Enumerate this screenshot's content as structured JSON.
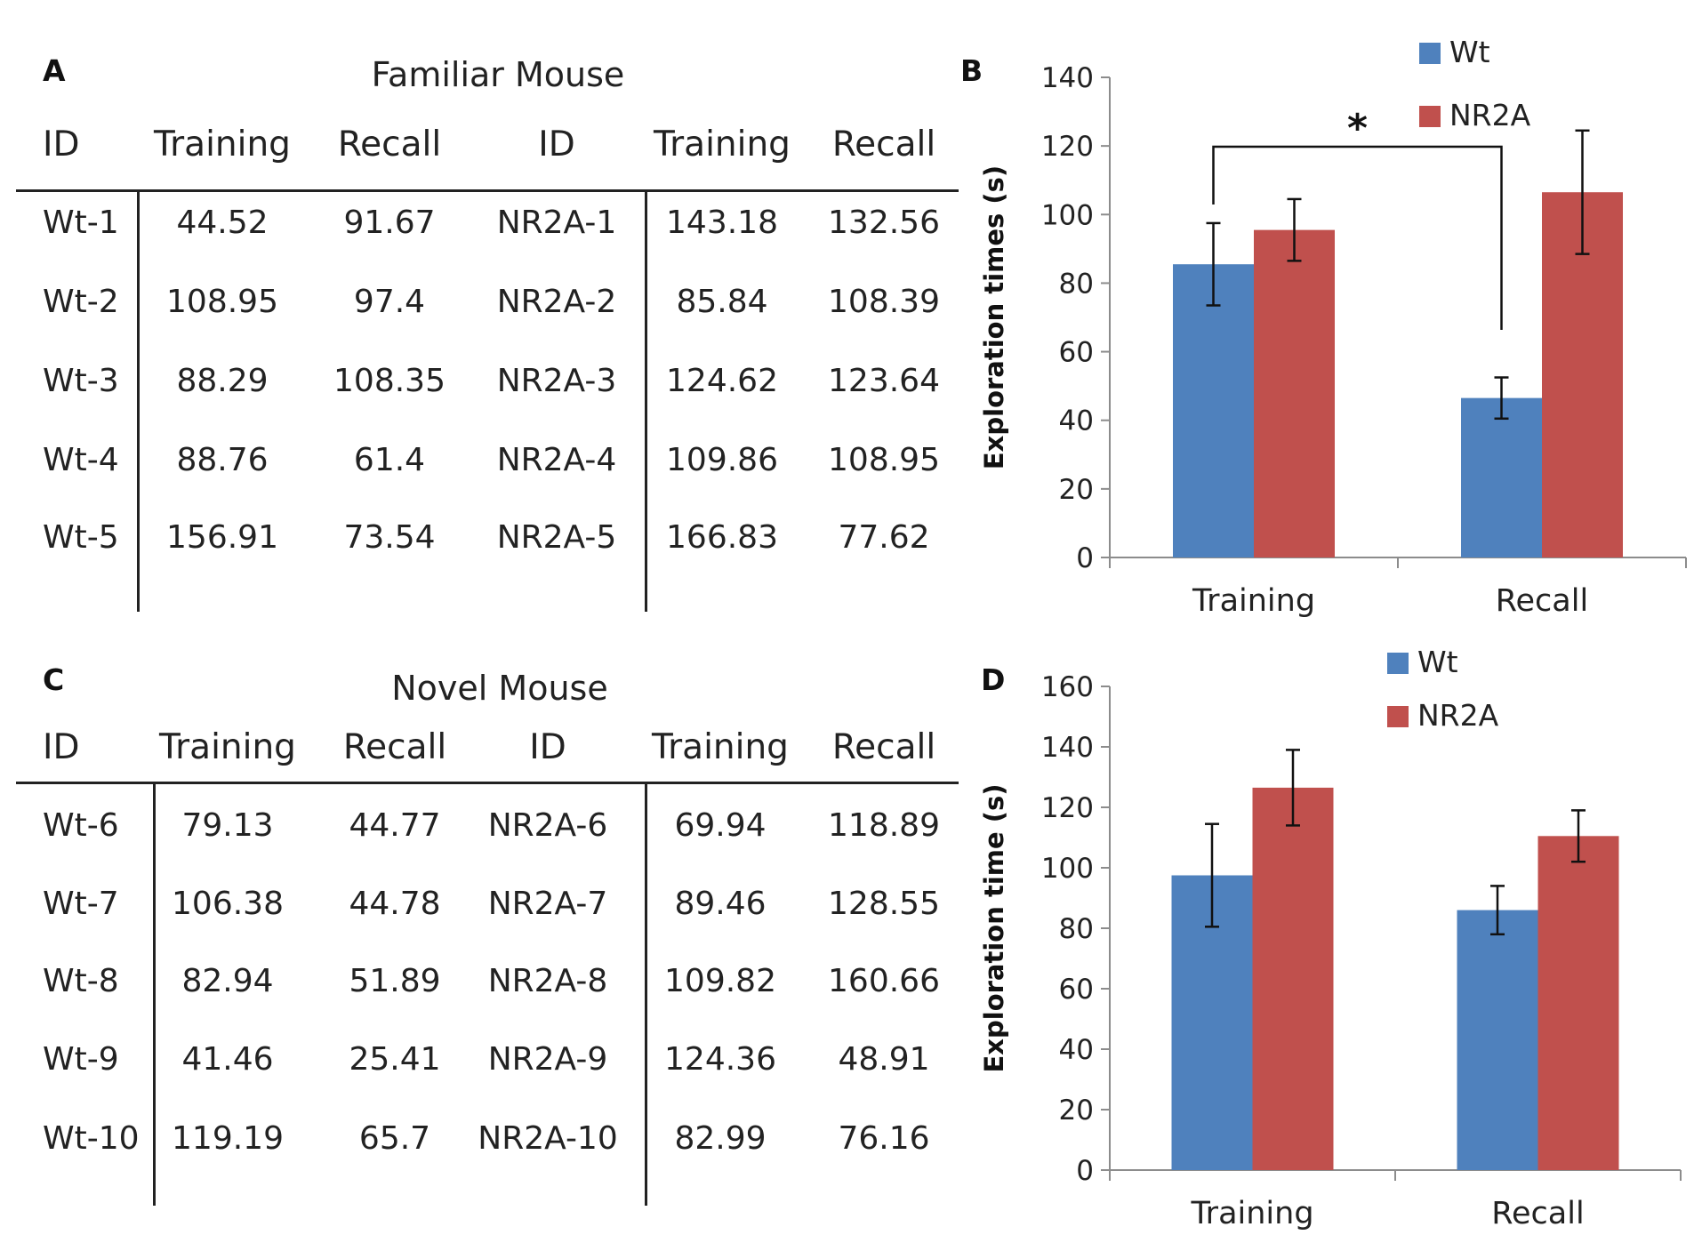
{
  "panels": {
    "a": "A",
    "b": "B",
    "c": "C",
    "d": "D"
  },
  "tables": [
    {
      "title": "Familiar Mouse",
      "headers": [
        "ID",
        "Training",
        "Recall",
        "ID",
        "Training",
        "Recall"
      ],
      "rows": [
        [
          "Wt-1",
          "44.52",
          "91.67",
          "NR2A-1",
          "143.18",
          "132.56"
        ],
        [
          "Wt-2",
          "108.95",
          "97.4",
          "NR2A-2",
          "85.84",
          "108.39"
        ],
        [
          "Wt-3",
          "88.29",
          "108.35",
          "NR2A-3",
          "124.62",
          "123.64"
        ],
        [
          "Wt-4",
          "88.76",
          "61.4",
          "NR2A-4",
          "109.86",
          "108.95"
        ],
        [
          "Wt-5",
          "156.91",
          "73.54",
          "NR2A-5",
          "166.83",
          "77.62"
        ]
      ]
    },
    {
      "title": "Novel Mouse",
      "headers": [
        "ID",
        "Training",
        "Recall",
        "ID",
        "Training",
        "Recall"
      ],
      "rows": [
        [
          "Wt-6",
          "79.13",
          "44.77",
          "NR2A-6",
          "69.94",
          "118.89"
        ],
        [
          "Wt-7",
          "106.38",
          "44.78",
          "NR2A-7",
          "89.46",
          "128.55"
        ],
        [
          "Wt-8",
          "82.94",
          "51.89",
          "NR2A-8",
          "109.82",
          "160.66"
        ],
        [
          "Wt-9",
          "41.46",
          "25.41",
          "NR2A-9",
          "124.36",
          "48.91"
        ],
        [
          "Wt-10",
          "119.19",
          "65.7",
          "NR2A-10",
          "82.99",
          "76.16"
        ]
      ]
    }
  ],
  "chart_data": [
    {
      "type": "bar",
      "panel": "B",
      "categories": [
        "Training",
        "Recall"
      ],
      "series": [
        {
          "name": "Wt",
          "color": "#4f81bd",
          "values": [
            85.5,
            46.5
          ],
          "errors": [
            12,
            6
          ]
        },
        {
          "name": "NR2A",
          "color": "#c0504d",
          "values": [
            95.5,
            106.5
          ],
          "errors": [
            9,
            18
          ]
        }
      ],
      "ylabel": "Exploration times (s)",
      "ylim": [
        0,
        140
      ],
      "yticks": [
        0,
        20,
        40,
        60,
        80,
        100,
        120,
        140
      ],
      "annotation": "*",
      "legend": "top-right"
    },
    {
      "type": "bar",
      "panel": "D",
      "categories": [
        "Training",
        "Recall"
      ],
      "series": [
        {
          "name": "Wt",
          "color": "#4f81bd",
          "values": [
            97.5,
            86
          ],
          "errors": [
            17,
            8
          ]
        },
        {
          "name": "NR2A",
          "color": "#c0504d",
          "values": [
            126.5,
            110.5
          ],
          "errors": [
            12.5,
            8.5
          ]
        }
      ],
      "ylabel": "Exploration time (s)",
      "ylim": [
        0,
        160
      ],
      "yticks": [
        0,
        20,
        40,
        60,
        80,
        100,
        120,
        140,
        160
      ],
      "legend": "top-right"
    }
  ]
}
